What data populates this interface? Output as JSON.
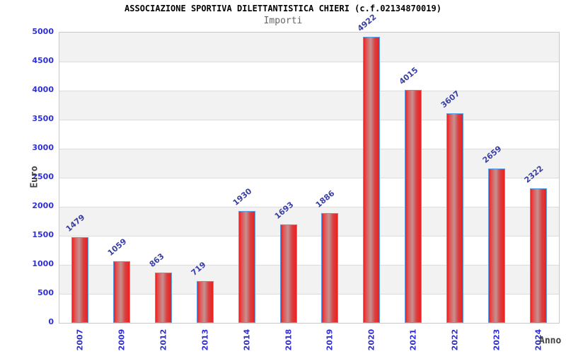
{
  "chart_data": {
    "type": "bar",
    "title": "ASSOCIAZIONE SPORTIVA DILETTANTISTICA CHIERI (c.f.02134870019)",
    "subtitle": "Importi",
    "xlabel": "Anno",
    "ylabel": "Euro",
    "categories": [
      "2007",
      "2009",
      "2012",
      "2013",
      "2014",
      "2018",
      "2019",
      "2020",
      "2021",
      "2022",
      "2023",
      "2024"
    ],
    "values": [
      1479,
      1059,
      863,
      719,
      1930,
      1693,
      1886,
      4922,
      4015,
      3607,
      2659,
      2322
    ],
    "ylim": [
      0,
      5000
    ],
    "yticks": [
      0,
      500,
      1000,
      1500,
      2000,
      2500,
      3000,
      3500,
      4000,
      4500,
      5000
    ],
    "grid": "horizontal",
    "legend": "none",
    "colors": {
      "bar_fill_edge": "#ee2020",
      "bar_fill_mid": "#c59191",
      "bar_border": "#55a0e8",
      "tick_label": "#2f2fd8",
      "value_label": "#3a40a5",
      "band_fill": "#f2f2f2",
      "grid_line": "#dcdcdc",
      "axis_title": "#404040",
      "title_color": "#000000",
      "subtitle_color": "#666666"
    }
  }
}
